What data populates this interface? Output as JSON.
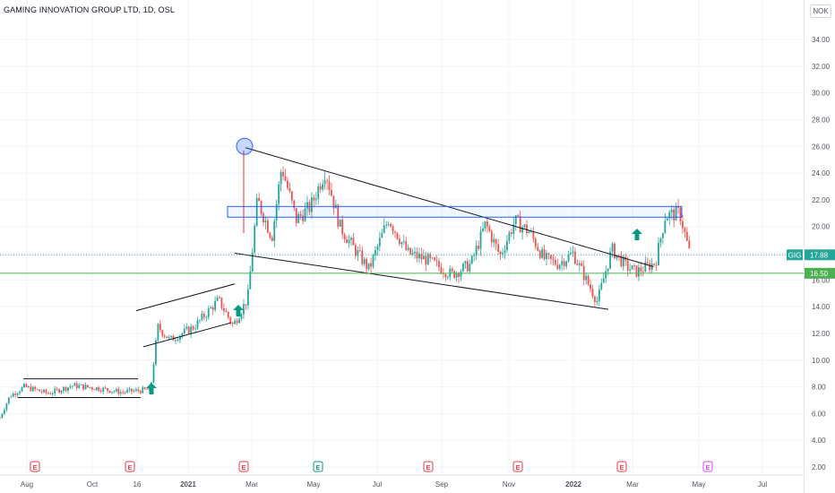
{
  "header": {
    "title": "GAMING INNOVATION GROUP LTD, 1D, OSL",
    "currency": "NOK"
  },
  "chart_data": {
    "type": "candlestick",
    "symbol": "GIG",
    "x_ticks": [
      "Aug",
      "Oct",
      "16",
      "2021",
      "Mar",
      "May",
      "Jul",
      "Sep",
      "Nov",
      "2022",
      "Mar",
      "May",
      "Jul"
    ],
    "y_ticks": [
      "2.00",
      "4.00",
      "6.00",
      "8.00",
      "10.00",
      "12.00",
      "14.00",
      "16.00",
      "18.00",
      "20.00",
      "22.00",
      "24.00",
      "26.00",
      "28.00",
      "30.00",
      "32.00",
      "34.00"
    ],
    "ylim": [
      1.5,
      35.5
    ],
    "last_price": "17.88",
    "support_level": "16.50",
    "price_path": [
      [
        0,
        5.7
      ],
      [
        0.02,
        7.3
      ],
      [
        0.05,
        8.0
      ],
      [
        0.1,
        7.5
      ],
      [
        0.15,
        8.1
      ],
      [
        0.2,
        7.9
      ],
      [
        0.25,
        7.6
      ],
      [
        0.31,
        7.8
      ],
      [
        0.325,
        12.5
      ],
      [
        0.35,
        11.5
      ],
      [
        0.4,
        12.5
      ],
      [
        0.45,
        14.5
      ],
      [
        0.48,
        12.6
      ],
      [
        0.51,
        14.6
      ],
      [
        0.53,
        22.0
      ],
      [
        0.56,
        19.2
      ],
      [
        0.58,
        24.5
      ],
      [
        0.61,
        20.5
      ],
      [
        0.64,
        21.5
      ],
      [
        0.67,
        24.2
      ],
      [
        0.7,
        20.0
      ],
      [
        0.73,
        18.3
      ],
      [
        0.76,
        16.8
      ],
      [
        0.8,
        20.6
      ],
      [
        0.84,
        18.0
      ],
      [
        0.88,
        17.5
      ],
      [
        0.93,
        16.4
      ],
      [
        0.97,
        17.2
      ],
      [
        1.0,
        20.2
      ],
      [
        1.03,
        17.8
      ],
      [
        1.06,
        20.4
      ],
      [
        1.09,
        19.6
      ],
      [
        1.12,
        17.6
      ],
      [
        1.15,
        17.2
      ],
      [
        1.18,
        18.0
      ],
      [
        1.21,
        15.8
      ],
      [
        1.23,
        14.4
      ],
      [
        1.26,
        18.3
      ],
      [
        1.29,
        17.0
      ],
      [
        1.31,
        16.6
      ],
      [
        1.35,
        17.3
      ],
      [
        1.37,
        20.8
      ],
      [
        1.4,
        21.0
      ],
      [
        1.42,
        18.0
      ]
    ],
    "annotations": {
      "earnings_markers": [
        "E",
        "E",
        "E",
        "E",
        "E",
        "E",
        "E",
        "E"
      ]
    }
  }
}
